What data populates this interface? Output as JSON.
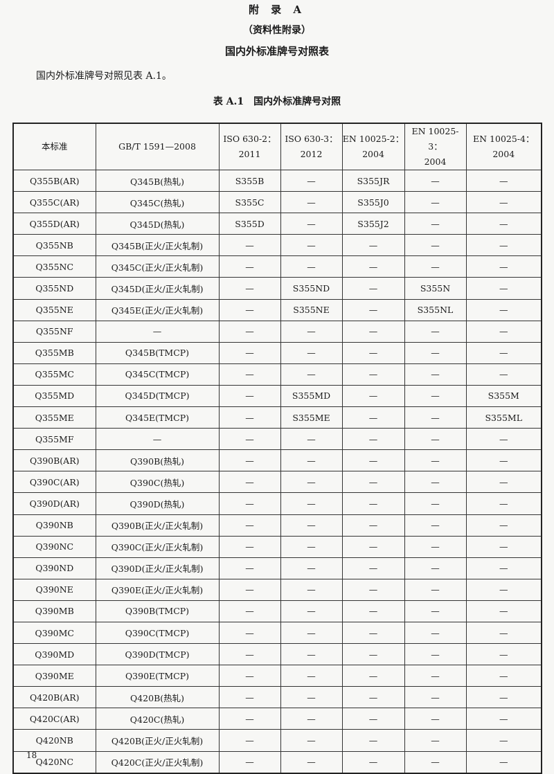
{
  "appendix_title": "附 录 A",
  "appendix_type": "（资料性附录）",
  "appendix_heading": "国内外标准牌号对照表",
  "intro_text": "国内外标准牌号对照见表 A.1。",
  "table_caption": "表 A.1　国内外标准牌号对照",
  "table": {
    "headers": [
      [
        "本标准"
      ],
      [
        "GB/T 1591—2008"
      ],
      [
        "ISO 630-2：",
        "2011"
      ],
      [
        "ISO 630-3：",
        "2012"
      ],
      [
        "EN 10025-2：",
        "2004"
      ],
      [
        "EN 10025-3：",
        "2004"
      ],
      [
        "EN 10025-4：",
        "2004"
      ]
    ],
    "rows": [
      [
        "Q355B(AR)",
        "Q345B(热轧)",
        "S355B",
        "—",
        "S355JR",
        "—",
        "—"
      ],
      [
        "Q355C(AR)",
        "Q345C(热轧)",
        "S355C",
        "—",
        "S355J0",
        "—",
        "—"
      ],
      [
        "Q355D(AR)",
        "Q345D(热轧)",
        "S355D",
        "—",
        "S355J2",
        "—",
        "—"
      ],
      [
        "Q355NB",
        "Q345B(正火/正火轧制)",
        "—",
        "—",
        "—",
        "—",
        "—"
      ],
      [
        "Q355NC",
        "Q345C(正火/正火轧制)",
        "—",
        "—",
        "—",
        "—",
        "—"
      ],
      [
        "Q355ND",
        "Q345D(正火/正火轧制)",
        "—",
        "S355ND",
        "—",
        "S355N",
        "—"
      ],
      [
        "Q355NE",
        "Q345E(正火/正火轧制)",
        "—",
        "S355NE",
        "—",
        "S355NL",
        "—"
      ],
      [
        "Q355NF",
        "—",
        "—",
        "—",
        "—",
        "—",
        "—"
      ],
      [
        "Q355MB",
        "Q345B(TMCP)",
        "—",
        "—",
        "—",
        "—",
        "—"
      ],
      [
        "Q355MC",
        "Q345C(TMCP)",
        "—",
        "—",
        "—",
        "—",
        "—"
      ],
      [
        "Q355MD",
        "Q345D(TMCP)",
        "—",
        "S355MD",
        "—",
        "—",
        "S355M"
      ],
      [
        "Q355ME",
        "Q345E(TMCP)",
        "—",
        "S355ME",
        "—",
        "—",
        "S355ML"
      ],
      [
        "Q355MF",
        "—",
        "—",
        "—",
        "—",
        "—",
        "—"
      ],
      [
        "Q390B(AR)",
        "Q390B(热轧)",
        "—",
        "—",
        "—",
        "—",
        "—"
      ],
      [
        "Q390C(AR)",
        "Q390C(热轧)",
        "—",
        "—",
        "—",
        "—",
        "—"
      ],
      [
        "Q390D(AR)",
        "Q390D(热轧)",
        "—",
        "—",
        "—",
        "—",
        "—"
      ],
      [
        "Q390NB",
        "Q390B(正火/正火轧制)",
        "—",
        "—",
        "—",
        "—",
        "—"
      ],
      [
        "Q390NC",
        "Q390C(正火/正火轧制)",
        "—",
        "—",
        "—",
        "—",
        "—"
      ],
      [
        "Q390ND",
        "Q390D(正火/正火轧制)",
        "—",
        "—",
        "—",
        "—",
        "—"
      ],
      [
        "Q390NE",
        "Q390E(正火/正火轧制)",
        "—",
        "—",
        "—",
        "—",
        "—"
      ],
      [
        "Q390MB",
        "Q390B(TMCP)",
        "—",
        "—",
        "—",
        "—",
        "—"
      ],
      [
        "Q390MC",
        "Q390C(TMCP)",
        "—",
        "—",
        "—",
        "—",
        "—"
      ],
      [
        "Q390MD",
        "Q390D(TMCP)",
        "—",
        "—",
        "—",
        "—",
        "—"
      ],
      [
        "Q390ME",
        "Q390E(TMCP)",
        "—",
        "—",
        "—",
        "—",
        "—"
      ],
      [
        "Q420B(AR)",
        "Q420B(热轧)",
        "—",
        "—",
        "—",
        "—",
        "—"
      ],
      [
        "Q420C(AR)",
        "Q420C(热轧)",
        "—",
        "—",
        "—",
        "—",
        "—"
      ],
      [
        "Q420NB",
        "Q420B(正火/正火轧制)",
        "—",
        "—",
        "—",
        "—",
        "—"
      ],
      [
        "Q420NC",
        "Q420C(正火/正火轧制)",
        "—",
        "—",
        "—",
        "—",
        "—"
      ]
    ]
  },
  "page_number": "18"
}
